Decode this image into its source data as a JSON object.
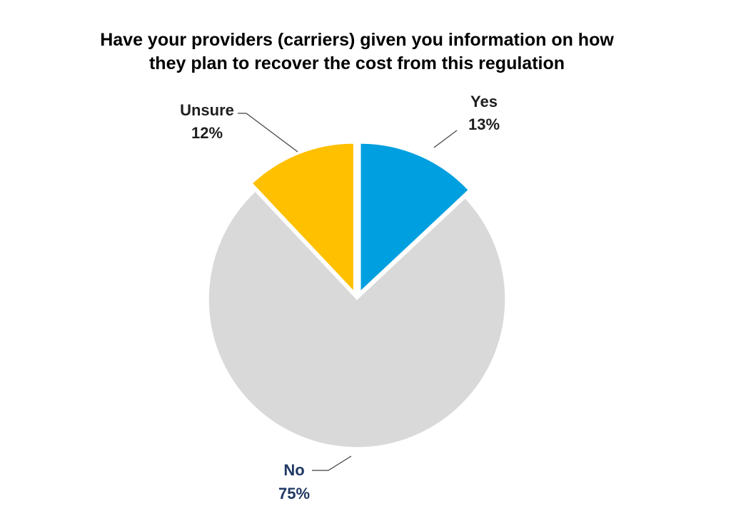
{
  "chart_data": {
    "type": "pie",
    "title_lines": [
      "Have your providers (carriers) given you information on how",
      "they plan to recover the cost from this regulation"
    ],
    "slices": [
      {
        "label": "Yes",
        "value": 13,
        "value_label": "13%",
        "color": "#009FDF",
        "label_color": "#1F1F1F",
        "exploded": true
      },
      {
        "label": "No",
        "value": 75,
        "value_label": "75%",
        "color": "#D9D9D9",
        "label_color": "#1F3864",
        "exploded": false
      },
      {
        "label": "Unsure",
        "value": 12,
        "value_label": "12%",
        "color": "#FFC000",
        "label_color": "#1F1F1F",
        "exploded": true
      }
    ],
    "start_angle_deg": 0,
    "direction": "clockwise"
  }
}
